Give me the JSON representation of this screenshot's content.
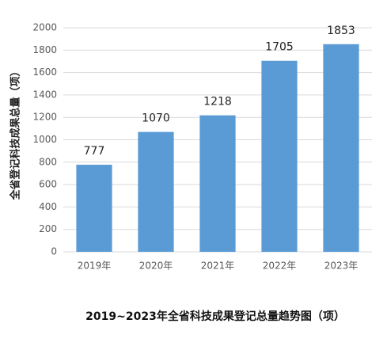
{
  "chart_data": {
    "type": "bar",
    "title": "2019~2023年全省科技成果登记总量趋势图（项）",
    "y_label": "全省登记科技成果总量（项）",
    "categories": [
      "2019年",
      "2020年",
      "2021年",
      "2022年",
      "2023年"
    ],
    "values": [
      777,
      1070,
      1218,
      1705,
      1853
    ],
    "color": "#5b9bd5",
    "ylim": [
      0,
      2000
    ],
    "yticks": [
      0,
      200,
      400,
      600,
      800,
      1000,
      1200,
      1400,
      1600,
      1800,
      2000
    ],
    "grid": true
  }
}
